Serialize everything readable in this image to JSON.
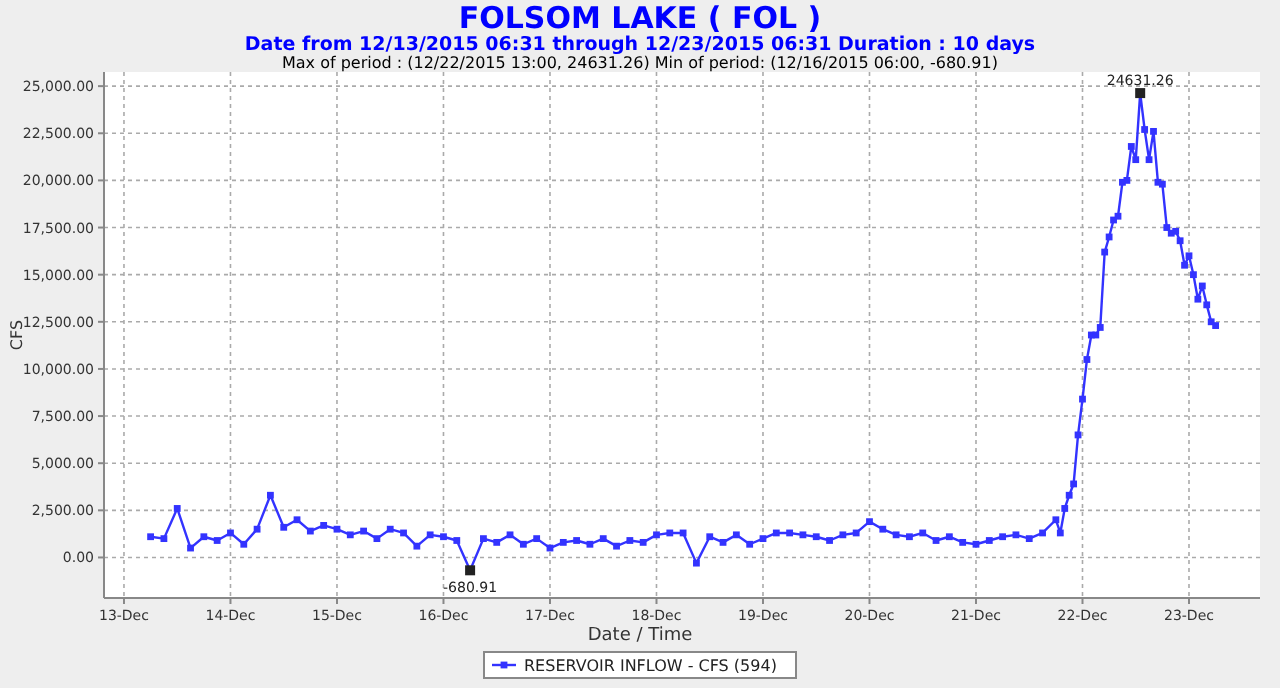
{
  "chart_data": {
    "type": "line",
    "title": "FOLSOM LAKE ( FOL )",
    "subtitle": "Date from 12/13/2015 06:31 through 12/23/2015 06:31 Duration : 10 days",
    "annotations": [
      "Max of period : (12/22/2015 13:00, 24631.26)  Min of period: (12/16/2015 06:00,  -680.91)",
      {
        "text": "24631.26",
        "x": "2015-12-22T13:00",
        "y": 24631.26
      },
      {
        "text": "-680.91",
        "x": "2015-12-16T06:00",
        "y": -680.91
      }
    ],
    "xlabel": "Date / Time",
    "ylabel": "CFS",
    "xlim": [
      "2015-12-12T19:30",
      "2015-12-23T16:00"
    ],
    "xticks": [
      {
        "value": "2015-12-13",
        "label": "13-Dec"
      },
      {
        "value": "2015-12-14",
        "label": "14-Dec"
      },
      {
        "value": "2015-12-15",
        "label": "15-Dec"
      },
      {
        "value": "2015-12-16",
        "label": "16-Dec"
      },
      {
        "value": "2015-12-17",
        "label": "17-Dec"
      },
      {
        "value": "2015-12-18",
        "label": "18-Dec"
      },
      {
        "value": "2015-12-19",
        "label": "19-Dec"
      },
      {
        "value": "2015-12-20",
        "label": "20-Dec"
      },
      {
        "value": "2015-12-21",
        "label": "21-Dec"
      },
      {
        "value": "2015-12-22",
        "label": "22-Dec"
      },
      {
        "value": "2015-12-23",
        "label": "23-Dec"
      }
    ],
    "ylim": [
      -2150,
      25750
    ],
    "yticks": [
      {
        "value": 0,
        "label": "0.00"
      },
      {
        "value": 2500,
        "label": "2,500.00"
      },
      {
        "value": 5000,
        "label": "5,000.00"
      },
      {
        "value": 7500,
        "label": "7,500.00"
      },
      {
        "value": 10000,
        "label": "10,000.00"
      },
      {
        "value": 12500,
        "label": "12,500.00"
      },
      {
        "value": 15000,
        "label": "15,000.00"
      },
      {
        "value": 17500,
        "label": "17,500.00"
      },
      {
        "value": 20000,
        "label": "20,000.00"
      },
      {
        "value": 22500,
        "label": "22,500.00"
      },
      {
        "value": 25000,
        "label": "25,000.00"
      }
    ],
    "x": [
      "2015-12-13T06:00",
      "2015-12-13T09:00",
      "2015-12-13T12:00",
      "2015-12-13T15:00",
      "2015-12-13T18:00",
      "2015-12-13T21:00",
      "2015-12-14T00:00",
      "2015-12-14T03:00",
      "2015-12-14T06:00",
      "2015-12-14T09:00",
      "2015-12-14T12:00",
      "2015-12-14T15:00",
      "2015-12-14T18:00",
      "2015-12-14T21:00",
      "2015-12-15T00:00",
      "2015-12-15T03:00",
      "2015-12-15T06:00",
      "2015-12-15T09:00",
      "2015-12-15T12:00",
      "2015-12-15T15:00",
      "2015-12-15T18:00",
      "2015-12-15T21:00",
      "2015-12-16T00:00",
      "2015-12-16T03:00",
      "2015-12-16T06:00",
      "2015-12-16T09:00",
      "2015-12-16T12:00",
      "2015-12-16T15:00",
      "2015-12-16T18:00",
      "2015-12-16T21:00",
      "2015-12-17T00:00",
      "2015-12-17T03:00",
      "2015-12-17T06:00",
      "2015-12-17T09:00",
      "2015-12-17T12:00",
      "2015-12-17T15:00",
      "2015-12-17T18:00",
      "2015-12-17T21:00",
      "2015-12-18T00:00",
      "2015-12-18T03:00",
      "2015-12-18T06:00",
      "2015-12-18T09:00",
      "2015-12-18T12:00",
      "2015-12-18T15:00",
      "2015-12-18T18:00",
      "2015-12-18T21:00",
      "2015-12-19T00:00",
      "2015-12-19T03:00",
      "2015-12-19T06:00",
      "2015-12-19T09:00",
      "2015-12-19T12:00",
      "2015-12-19T15:00",
      "2015-12-19T18:00",
      "2015-12-19T21:00",
      "2015-12-20T00:00",
      "2015-12-20T03:00",
      "2015-12-20T06:00",
      "2015-12-20T09:00",
      "2015-12-20T12:00",
      "2015-12-20T15:00",
      "2015-12-20T18:00",
      "2015-12-20T21:00",
      "2015-12-21T00:00",
      "2015-12-21T03:00",
      "2015-12-21T06:00",
      "2015-12-21T09:00",
      "2015-12-21T12:00",
      "2015-12-21T15:00",
      "2015-12-21T18:00",
      "2015-12-21T19:00",
      "2015-12-21T20:00",
      "2015-12-21T21:00",
      "2015-12-21T22:00",
      "2015-12-21T23:00",
      "2015-12-22T00:00",
      "2015-12-22T01:00",
      "2015-12-22T02:00",
      "2015-12-22T03:00",
      "2015-12-22T04:00",
      "2015-12-22T05:00",
      "2015-12-22T06:00",
      "2015-12-22T07:00",
      "2015-12-22T08:00",
      "2015-12-22T09:00",
      "2015-12-22T10:00",
      "2015-12-22T11:00",
      "2015-12-22T12:00",
      "2015-12-22T13:00",
      "2015-12-22T14:00",
      "2015-12-22T15:00",
      "2015-12-22T16:00",
      "2015-12-22T17:00",
      "2015-12-22T18:00",
      "2015-12-22T19:00",
      "2015-12-22T20:00",
      "2015-12-22T21:00",
      "2015-12-22T22:00",
      "2015-12-22T23:00",
      "2015-12-23T00:00",
      "2015-12-23T01:00",
      "2015-12-23T02:00",
      "2015-12-23T03:00",
      "2015-12-23T04:00",
      "2015-12-23T05:00",
      "2015-12-23T06:00"
    ],
    "series": [
      {
        "name": "RESERVOIR INFLOW - CFS (594)",
        "color": "#3333ff",
        "values": [
          1100,
          1000,
          2600,
          500,
          1100,
          900,
          1300,
          700,
          1500,
          3300,
          1600,
          2000,
          1400,
          1700,
          1500,
          1200,
          1400,
          1000,
          1500,
          1300,
          600,
          1200,
          1100,
          900,
          -680.91,
          1000,
          800,
          1200,
          700,
          1000,
          500,
          800,
          900,
          700,
          1000,
          600,
          900,
          800,
          1200,
          1300,
          1300,
          -300,
          1100,
          800,
          1200,
          700,
          1000,
          1300,
          1300,
          1200,
          1100,
          900,
          1200,
          1300,
          1900,
          1500,
          1200,
          1100,
          1300,
          900,
          1100,
          800,
          700,
          900,
          1100,
          1200,
          1000,
          1300,
          2000,
          1300,
          2600,
          3300,
          3900,
          6500,
          8400,
          10500,
          11800,
          11800,
          12200,
          16200,
          17000,
          17900,
          18100,
          19900,
          20000,
          21800,
          21100,
          24631.26,
          22700,
          21100,
          22600,
          19900,
          19800,
          17500,
          17200,
          17300,
          16800,
          15500,
          16000,
          15000,
          13700,
          14400,
          13400,
          12500,
          12300
        ]
      }
    ],
    "grid": true,
    "legend": "bottom",
    "marker": "square",
    "line_style": "solid"
  }
}
